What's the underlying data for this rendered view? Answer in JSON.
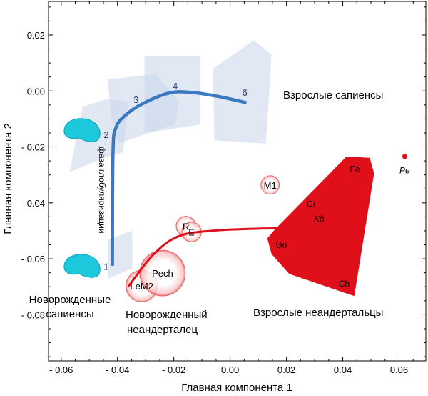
{
  "chart_data": {
    "type": "scatter",
    "xlabel": "Главная компонента 1",
    "ylabel": "Главная компонента 2",
    "xlim": [
      -0.0645,
      0.0695
    ],
    "ylim": [
      -0.0965,
      0.032
    ],
    "xticks": [
      -0.06,
      -0.04,
      -0.02,
      0.0,
      0.02,
      0.04,
      0.06
    ],
    "xtick_labels": [
      "- 0.06",
      "- 0.04",
      "- 0.02",
      "0.00",
      "0.02",
      "0.04",
      "0.06"
    ],
    "yticks": [
      0.02,
      0.0,
      -0.02,
      -0.04,
      -0.06,
      -0.08
    ],
    "ytick_labels": [
      "0.02",
      "0.00",
      "- 0.02",
      "- 0.04",
      "- 0.06",
      "- 0.08"
    ],
    "grid": false,
    "colors": {
      "sapiens": "#3a78c0",
      "sapiens_region": "#c8d5ea",
      "neanderthal": "#e0101a",
      "brain": "#1ec8dc",
      "axis": "#000000"
    },
    "sapiens_trajectory": {
      "points": [
        [
          -0.0418,
          -0.0625
        ],
        [
          -0.0416,
          -0.022
        ],
        [
          -0.0405,
          -0.013
        ],
        [
          -0.037,
          -0.0085
        ],
        [
          -0.031,
          -0.0045
        ],
        [
          -0.022,
          -0.0008
        ],
        [
          -0.015,
          -0.0004
        ],
        [
          -0.005,
          -0.0018
        ],
        [
          0.0058,
          -0.0042
        ]
      ],
      "stage_labels": [
        {
          "text": "1",
          "x": -0.044,
          "y": -0.0626
        },
        {
          "text": "2",
          "x": -0.044,
          "y": -0.0155
        },
        {
          "text": "3",
          "x": -0.0334,
          "y": -0.003
        },
        {
          "text": "4",
          "x": -0.0195,
          "y": 0.0018
        },
        {
          "text": "6",
          "x": 0.0052,
          "y": -0.0005
        }
      ],
      "regions": [
        [
          [
            -0.057,
            -0.029
          ],
          [
            -0.0524,
            -0.0056
          ],
          [
            -0.0435,
            -0.0028
          ],
          [
            -0.036,
            -0.004
          ],
          [
            -0.038,
            -0.022
          ],
          [
            -0.0435,
            -0.0234
          ]
        ],
        [
          [
            -0.0435,
            0.0041
          ],
          [
            -0.0263,
            0.0061
          ],
          [
            -0.0182,
            -0.0036
          ],
          [
            -0.0195,
            -0.0117
          ],
          [
            -0.0397,
            -0.0188
          ],
          [
            -0.0423,
            -0.0087
          ]
        ],
        [
          [
            -0.0304,
            0.0125
          ],
          [
            -0.0106,
            0.0125
          ],
          [
            -0.0106,
            -0.012
          ],
          [
            -0.0304,
            -0.015
          ]
        ],
        [
          [
            -0.0061,
            0.0079
          ],
          [
            0.0084,
            0.0181
          ],
          [
            0.0147,
            0.013
          ],
          [
            0.0127,
            -0.0188
          ],
          [
            -0.0056,
            -0.0176
          ]
        ],
        [
          [
            -0.0435,
            -0.0532
          ],
          [
            -0.0347,
            -0.0499
          ],
          [
            -0.0347,
            -0.0634
          ],
          [
            -0.0435,
            -0.0672
          ]
        ]
      ]
    },
    "neanderthal_trajectory": {
      "points": [
        [
          -0.036,
          -0.0697
        ],
        [
          -0.0271,
          -0.0583
        ],
        [
          -0.0182,
          -0.0519
        ],
        [
          -0.0056,
          -0.0499
        ],
        [
          0.0147,
          -0.0491
        ],
        [
          0.0332,
          -0.0489
        ]
      ],
      "specimens": [
        {
          "label": "LeM2",
          "x": -0.0314,
          "y": -0.0697,
          "r": 0.0056
        },
        {
          "label": "Pech",
          "x": -0.024,
          "y": -0.0651,
          "r": 0.0081
        },
        {
          "label": "R",
          "x": -0.0157,
          "y": -0.0483,
          "r": 0.0035
        },
        {
          "label": "E",
          "x": -0.0137,
          "y": -0.0504,
          "r": 0.0035
        },
        {
          "label": "M1",
          "x": 0.0142,
          "y": -0.0336,
          "r": 0.0033
        }
      ],
      "adult_region": [
        [
          0.0413,
          -0.0234
        ],
        [
          0.0496,
          -0.0239
        ],
        [
          0.0511,
          -0.0295
        ],
        [
          0.0441,
          -0.0733
        ],
        [
          0.021,
          -0.0654
        ],
        [
          0.0147,
          -0.0583
        ],
        [
          0.0132,
          -0.0527
        ],
        [
          0.016,
          -0.0494
        ]
      ],
      "adult_labels": [
        {
          "text": "Fe",
          "x": 0.0443,
          "y": -0.0277,
          "italic": false
        },
        {
          "text": "Gi",
          "x": 0.0286,
          "y": -0.0402,
          "italic": true
        },
        {
          "text": "Kb",
          "x": 0.0316,
          "y": -0.0455,
          "italic": true
        },
        {
          "text": "Gu",
          "x": 0.0182,
          "y": -0.0547,
          "italic": false
        },
        {
          "text": "Ch",
          "x": 0.0405,
          "y": -0.0687,
          "italic": false
        }
      ],
      "outlier": {
        "label": "Pe",
        "x": 0.062,
        "y": -0.0234,
        "label_y": -0.0282
      }
    },
    "annotations": {
      "adult_sapiens": "Взрослые сапиенсы",
      "newborn_sapiens": [
        "Новорожденные",
        "сапиенсы"
      ],
      "newborn_neanderthal": [
        "Новорожденный",
        "неандерталец"
      ],
      "adult_neanderthals": "Взрослые неандертальцы",
      "globularization_phase": "фаза глобуляризации"
    }
  }
}
